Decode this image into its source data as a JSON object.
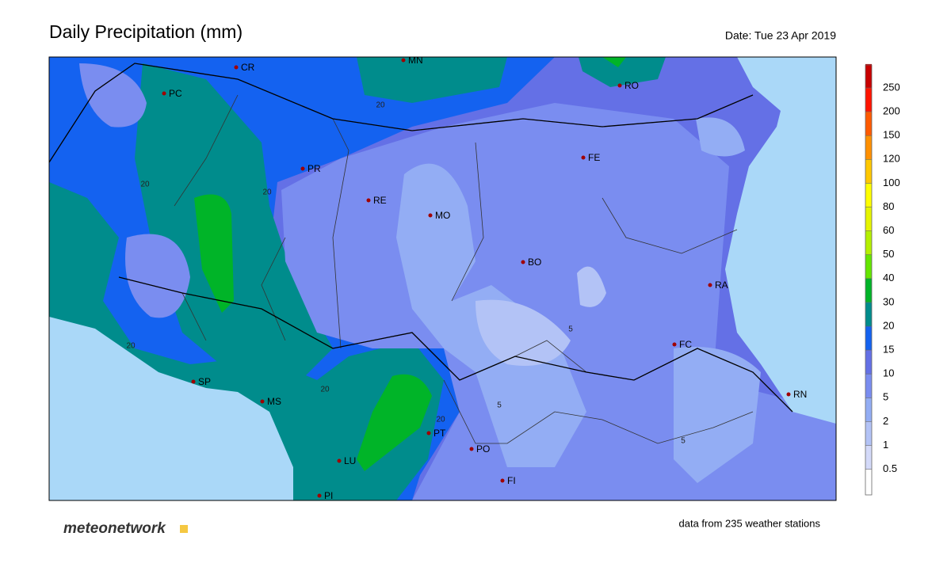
{
  "header": {
    "title": "Daily Precipitation (mm)",
    "date": "Date: Tue 23 Apr 2019"
  },
  "map": {
    "cities": [
      "PC",
      "CR",
      "MN",
      "RO",
      "FE",
      "PR",
      "RE",
      "MO",
      "BO",
      "RA",
      "FC",
      "RN",
      "SP",
      "MS",
      "PT",
      "PO",
      "LU",
      "FI",
      "PI"
    ],
    "contour_labels": [
      "20",
      "20",
      "20",
      "20",
      "20",
      "20",
      "5",
      "5",
      "5"
    ]
  },
  "legend": {
    "ticks": [
      0.5,
      1,
      2,
      5,
      10,
      15,
      20,
      30,
      40,
      50,
      60,
      80,
      100,
      120,
      150,
      200,
      250
    ],
    "colors": [
      "#ffffff",
      "#d4daf9",
      "#b3c3f6",
      "#93adf4",
      "#7a8df0",
      "#6470e6",
      "#1462f0",
      "#008c8c",
      "#00b428",
      "#64e600",
      "#b4f000",
      "#e6f500",
      "#ffff00",
      "#ffc800",
      "#ff9000",
      "#ff5a00",
      "#ff1400",
      "#c80000",
      "#780000"
    ]
  },
  "footer": {
    "brand": "meteonetwork",
    "source": "data from 235 weather stations"
  }
}
